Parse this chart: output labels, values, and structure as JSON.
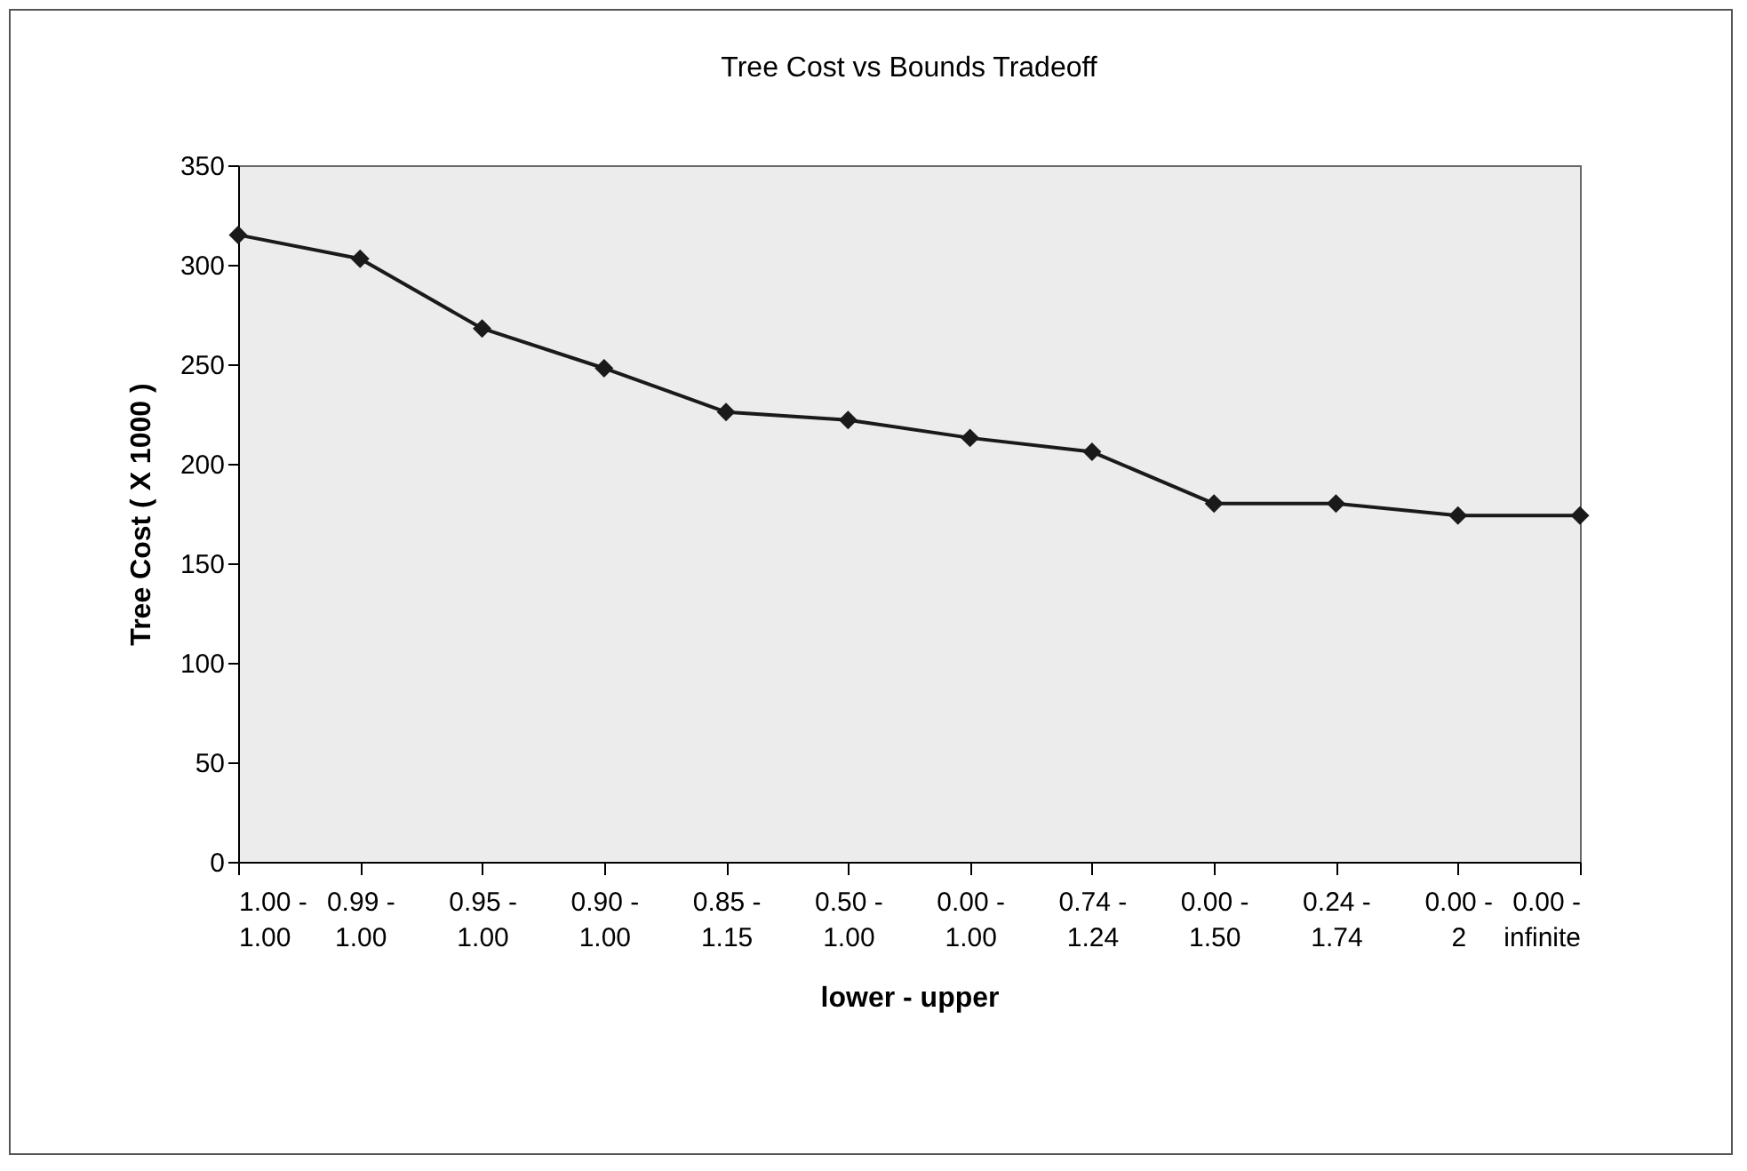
{
  "chart_data": {
    "type": "line",
    "title": "Tree Cost  vs Bounds Tradeoff",
    "xlabel": "lower - upper",
    "ylabel": "Tree Cost ( X 1000 )",
    "categories": [
      "1.00 - 1.00",
      "0.99 - 1.00",
      "0.95 - 1.00",
      "0.90 - 1.00",
      "0.85 - 1.15",
      "0.50 - 1.00",
      "0.00 - 1.00",
      "0.74 - 1.24",
      "0.00 - 1.50",
      "0.24 - 1.74",
      "0.00 - 2",
      "0.00 - infinite"
    ],
    "series": [
      {
        "color": "#1a1a1a",
        "values": [
          315,
          303,
          268,
          248,
          226,
          222,
          213,
          206,
          180,
          180,
          174,
          174
        ]
      }
    ],
    "ylim": [
      0,
      350
    ],
    "yticks": [
      0,
      50,
      100,
      150,
      200,
      250,
      300,
      350
    ],
    "marker": "diamond",
    "line_style": "solid",
    "grid": false,
    "legend": false
  }
}
